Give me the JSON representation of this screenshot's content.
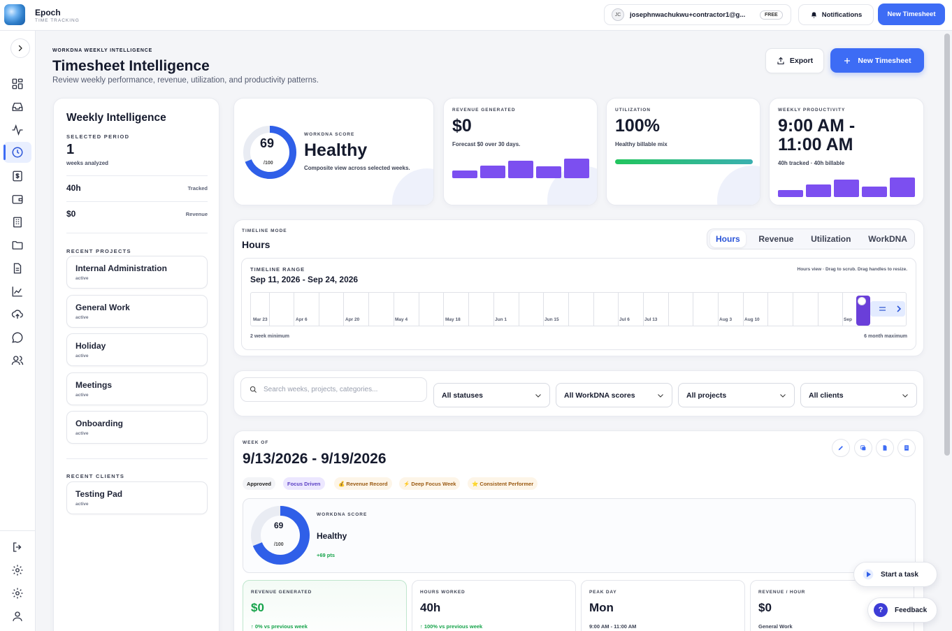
{
  "brand": {
    "name": "Epoch",
    "tagline": "TIME TRACKING"
  },
  "topbar": {
    "avatar_initials": "JC",
    "email": "josephnwachukwu+contractor1@g...",
    "plan_badge": "FREE",
    "notifications_label": "Notifications",
    "new_timesheet_label": "New Timesheet"
  },
  "sidebar": {
    "nav_icons": [
      "grid-icon",
      "inbox-icon",
      "activity-icon",
      "clock-icon",
      "invoice-icon",
      "wallet-icon",
      "building-icon",
      "folder-icon",
      "document-icon",
      "chart-icon",
      "upload-icon",
      "chat-icon",
      "users-icon"
    ],
    "active": "clock-icon",
    "bottom_icons": [
      "logout-icon",
      "gear-icon",
      "gear-icon",
      "user-icon"
    ]
  },
  "header": {
    "eyebrow": "WORKDNA WEEKLY INTELLIGENCE",
    "title": "Timesheet Intelligence",
    "subtitle": "Review weekly performance, revenue, utilization, and productivity patterns.",
    "export_label": "Export",
    "new_timesheet_label": "New Timesheet"
  },
  "weekly": {
    "title": "Weekly Intelligence",
    "selected_period_label": "SELECTED PERIOD",
    "selected_period_value": "1",
    "weeks_label": "weeks analyzed",
    "tracked_value": "40h",
    "tracked_label": "Tracked",
    "revenue_value": "$0",
    "revenue_label": "Revenue",
    "recent_projects_label": "RECENT PROJECTS",
    "projects": [
      {
        "name": "Internal Administration",
        "status": "active"
      },
      {
        "name": "General Work",
        "status": "active"
      },
      {
        "name": "Holiday",
        "status": "active"
      },
      {
        "name": "Meetings",
        "status": "active"
      },
      {
        "name": "Onboarding",
        "status": "active"
      }
    ],
    "recent_clients_label": "RECENT CLIENTS",
    "clients": [
      {
        "name": "Testing Pad",
        "status": "active"
      }
    ]
  },
  "score_card": {
    "score": "69",
    "max": "/100",
    "eyebrow": "WORKDNA SCORE",
    "label": "Healthy",
    "desc": "Composite view across selected weeks.",
    "score_fraction": 0.69
  },
  "revenue_card": {
    "eyebrow": "REVENUE GENERATED",
    "value": "$0",
    "sub": "Forecast $0 over 30 days.",
    "bars": [
      0.4,
      0.65,
      0.9,
      0.6,
      1.0
    ]
  },
  "utilization_card": {
    "eyebrow": "UTILIZATION",
    "value": "100%",
    "sub": "Healthy billable mix",
    "progress": 1.0
  },
  "productivity_card": {
    "eyebrow": "WEEKLY PRODUCTIVITY",
    "value_line1": "9:00 AM -",
    "value_line2": "11:00 AM",
    "sub": "40h tracked · 40h billable",
    "bars": [
      0.35,
      0.65,
      0.9,
      0.55,
      1.0
    ]
  },
  "timeline": {
    "eyebrow": "TIMELINE MODE",
    "mode": "Hours",
    "tabs": [
      "Hours",
      "Revenue",
      "Utilization",
      "WorkDNA"
    ],
    "active_tab": "Hours",
    "range_eyebrow": "TIMELINE RANGE",
    "range": "Sep 11, 2026 - Sep 24, 2026",
    "hint": "Hours view · Drag to scrub. Drag handles to resize.",
    "tick_labels": [
      "Mar 23",
      "Apr 6",
      "Apr 20",
      "May 4",
      "May 18",
      "Jun 1",
      "Jun 15",
      "Jul 6",
      "Jul 13",
      "Aug 3",
      "Aug 10",
      "Sep"
    ],
    "min_label": "2 week minimum",
    "max_label": "6 month maximum"
  },
  "filters": {
    "search_placeholder": "Search weeks, projects, categories...",
    "statuses": "All statuses",
    "scores": "All WorkDNA scores",
    "projects": "All projects",
    "clients": "All clients"
  },
  "week": {
    "eyebrow": "WEEK OF",
    "range": "9/13/2026 - 9/19/2026",
    "badges": [
      "Approved",
      "Focus Driven",
      "💰 Revenue Record",
      "⚡ Deep Focus Week",
      "⭐ Consistent Performer"
    ],
    "score": "69",
    "max": "/100",
    "score_eyebrow": "WORKDNA SCORE",
    "score_label": "Healthy",
    "score_delta": "+69 pts",
    "score_fraction": 0.69,
    "stats": [
      {
        "eyebrow": "REVENUE GENERATED",
        "value": "$0",
        "foot": "↑ 0% vs previous week"
      },
      {
        "eyebrow": "HOURS WORKED",
        "value": "40h",
        "foot": "↑ 100% vs previous week"
      },
      {
        "eyebrow": "PEAK DAY",
        "value": "Mon",
        "foot": "9:00 AM - 11:00 AM"
      },
      {
        "eyebrow": "REVENUE / HOUR",
        "value": "$0",
        "foot": "General Work"
      }
    ]
  },
  "fabs": {
    "start_task": "Start a task",
    "feedback": "Feedback"
  },
  "colors": {
    "accent": "#3d6cf5",
    "bar": "#7c4ff0",
    "good": "#16a34a",
    "ring": "#2f5fe8"
  }
}
